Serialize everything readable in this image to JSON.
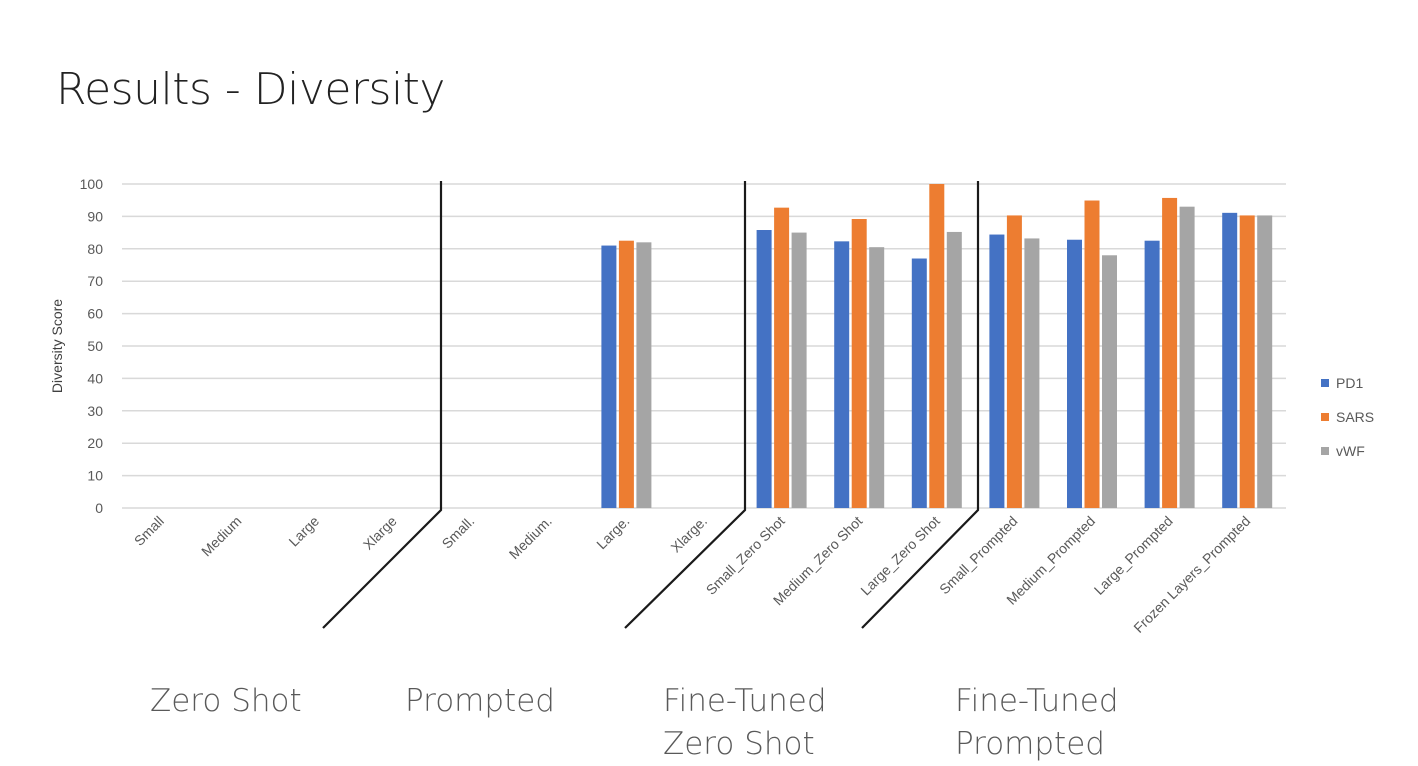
{
  "page_title": "Results - Diversity",
  "group_labels": [
    "Zero Shot",
    "Prompted",
    "Fine-Tuned\nZero Shot",
    "Fine-Tuned\nPrompted"
  ],
  "chart_data": {
    "type": "bar",
    "title": "",
    "xlabel": "",
    "ylabel": "Diversity Score",
    "ylim": [
      0,
      100
    ],
    "yticks": [
      0,
      10,
      20,
      30,
      40,
      50,
      60,
      70,
      80,
      90,
      100
    ],
    "grid": true,
    "legend_position": "right",
    "categories": [
      "Small",
      "Medium",
      "Large",
      "Xlarge",
      "Small.",
      "Medium.",
      "Large.",
      "Xlarge.",
      "Small_Zero Shot",
      "Medium_Zero Shot",
      "Large_Zero Shot",
      "Small_Prompted",
      "Medium_Prompted",
      "Large_Prompted",
      "Frozen Layers_Prompted"
    ],
    "series": [
      {
        "name": "PD1",
        "color": "#4472c4",
        "values": [
          null,
          null,
          null,
          null,
          null,
          null,
          81.0,
          null,
          85.8,
          82.3,
          77.0,
          84.4,
          82.8,
          82.5,
          91.1
        ]
      },
      {
        "name": "SARS",
        "color": "#ed7d31",
        "values": [
          null,
          null,
          null,
          null,
          null,
          null,
          82.5,
          null,
          92.7,
          89.2,
          100.0,
          90.3,
          94.9,
          95.7,
          90.3
        ]
      },
      {
        "name": "vWF",
        "color": "#a5a5a5",
        "values": [
          null,
          null,
          null,
          null,
          null,
          null,
          82.0,
          null,
          85.0,
          80.5,
          85.2,
          83.2,
          78.0,
          93.0,
          90.3
        ]
      }
    ]
  }
}
